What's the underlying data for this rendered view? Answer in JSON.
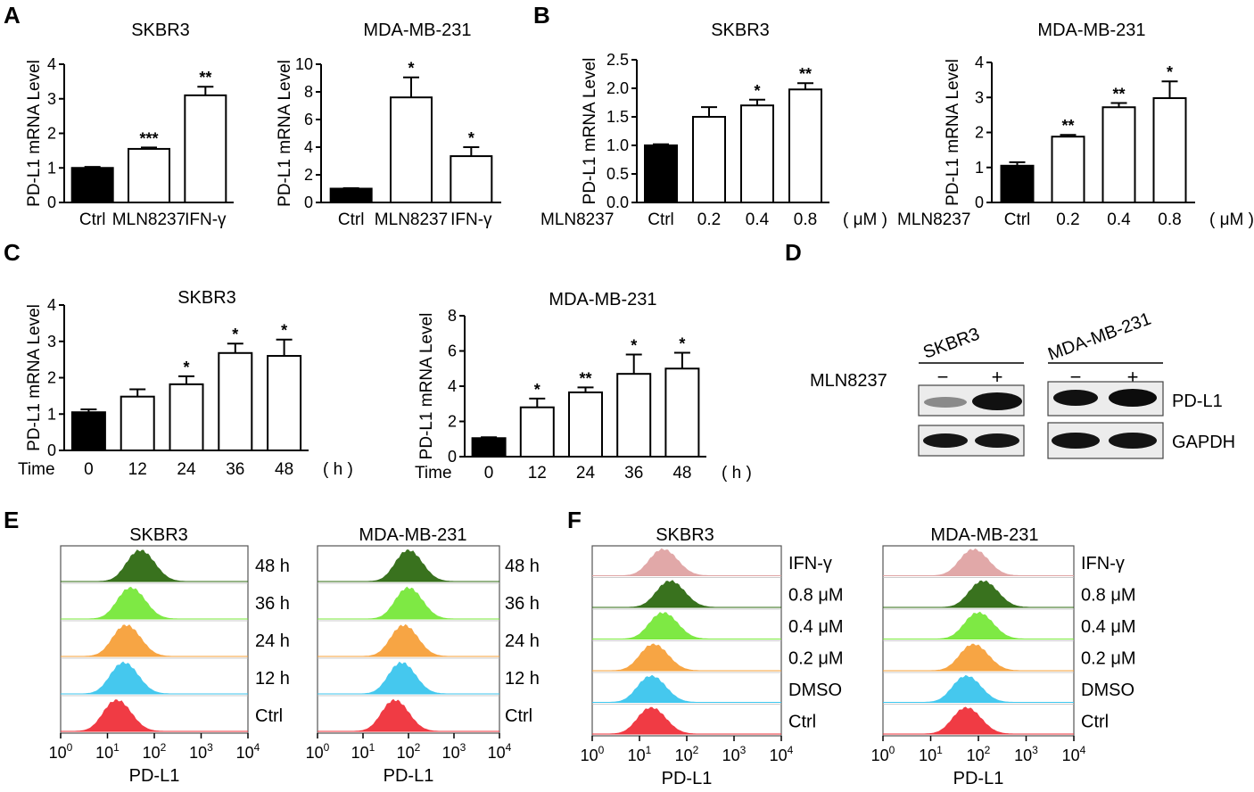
{
  "panel_letters": [
    "A",
    "B",
    "C",
    "D",
    "E",
    "F"
  ],
  "chart_data": [
    {
      "panel": "A",
      "type": "bar",
      "title": "SKBR3",
      "ylabel": "PD-L1 mRNA Level",
      "xlabel": "",
      "categories": [
        "Ctrl",
        "MLN8237",
        "IFN-γ"
      ],
      "values": [
        1.0,
        1.55,
        3.1
      ],
      "errors": [
        0.03,
        0.04,
        0.25
      ],
      "sig": [
        "",
        "***",
        "**"
      ],
      "ylim": [
        0,
        4
      ],
      "yticks": [
        "0",
        "1",
        "2",
        "3",
        "4"
      ]
    },
    {
      "panel": "A",
      "type": "bar",
      "title": "MDA-MB-231",
      "ylabel": "PD-L1 mRNA Level",
      "xlabel": "",
      "categories": [
        "Ctrl",
        "MLN8237",
        "IFN-γ"
      ],
      "values": [
        1.0,
        7.6,
        3.35
      ],
      "errors": [
        0.03,
        1.45,
        0.65
      ],
      "sig": [
        "",
        "*",
        "*"
      ],
      "ylim": [
        0,
        10
      ],
      "yticks": [
        "0",
        "2",
        "4",
        "6",
        "8",
        "10"
      ]
    },
    {
      "panel": "B",
      "type": "bar",
      "title": "SKBR3",
      "ylabel": "PD-L1 mRNA Level",
      "xlabel": "MLN8237",
      "categories": [
        "Ctrl",
        "0.2",
        "0.4",
        "0.8"
      ],
      "unit": "( μM )",
      "values": [
        1.0,
        1.5,
        1.7,
        1.98
      ],
      "errors": [
        0.02,
        0.17,
        0.1,
        0.11
      ],
      "sig": [
        "",
        "",
        "*",
        "**"
      ],
      "ylim": [
        0,
        2.5
      ],
      "yticks": [
        "0.0",
        "0.5",
        "1.0",
        "1.5",
        "2.0",
        "2.5"
      ]
    },
    {
      "panel": "B",
      "type": "bar",
      "title": "MDA-MB-231",
      "ylabel": "PD-L1 mRNA Level",
      "xlabel": "MLN8237",
      "categories": [
        "Ctrl",
        "0.2",
        "0.4",
        "0.8"
      ],
      "unit": "( μM )",
      "values": [
        1.05,
        1.88,
        2.72,
        2.98
      ],
      "errors": [
        0.1,
        0.05,
        0.12,
        0.48
      ],
      "sig": [
        "",
        "**",
        "**",
        "*"
      ],
      "ylim": [
        0,
        4
      ],
      "yticks": [
        "0",
        "1",
        "2",
        "3",
        "4"
      ]
    },
    {
      "panel": "C",
      "type": "bar",
      "title": "SKBR3",
      "ylabel": "PD-L1 mRNA Level",
      "xlabel": "Time",
      "categories": [
        "0",
        "12",
        "24",
        "36",
        "48"
      ],
      "unit": "( h )",
      "values": [
        1.05,
        1.48,
        1.82,
        2.68,
        2.6
      ],
      "errors": [
        0.08,
        0.2,
        0.22,
        0.26,
        0.45
      ],
      "sig": [
        "",
        "",
        "*",
        "*",
        "*"
      ],
      "ylim": [
        0,
        4
      ],
      "yticks": [
        "0",
        "1",
        "2",
        "3",
        "4"
      ]
    },
    {
      "panel": "C",
      "type": "bar",
      "title": "MDA-MB-231",
      "ylabel": "PD-L1 mRNA Level",
      "xlabel": "Time",
      "categories": [
        "0",
        "12",
        "24",
        "36",
        "48"
      ],
      "unit": "( h )",
      "values": [
        1.05,
        2.8,
        3.65,
        4.7,
        5.0
      ],
      "errors": [
        0.05,
        0.5,
        0.28,
        1.1,
        0.9
      ],
      "sig": [
        "",
        "*",
        "**",
        "*",
        "*"
      ],
      "ylim": [
        0,
        8
      ],
      "yticks": [
        "0",
        "2",
        "4",
        "6",
        "8"
      ]
    }
  ],
  "western_blot": {
    "treatment_label": "MLN8237",
    "cell_lines": [
      "SKBR3",
      "MDA-MB-231"
    ],
    "lane_signs": [
      "−",
      "+"
    ],
    "proteins": [
      "PD-L1",
      "GAPDH"
    ]
  },
  "flow_cytometry": {
    "xlabel": "PD-L1",
    "x_tick_bases": [
      "10",
      "10",
      "10",
      "10",
      "10"
    ],
    "x_tick_exps": [
      "0",
      "1",
      "2",
      "3",
      "4"
    ],
    "panel_E": {
      "titles": [
        "SKBR3",
        "MDA-MB-231"
      ],
      "conditions": [
        "48 h",
        "36 h",
        "24 h",
        "12 h",
        "Ctrl"
      ],
      "colors": [
        "#2f6b12",
        "#78e83a",
        "#f7a13a",
        "#3cc6ee",
        "#f0313a"
      ],
      "peak_log10": [
        [
          1.75,
          1.55,
          1.45,
          1.4,
          1.25
        ],
        [
          2.05,
          2.05,
          1.95,
          1.9,
          1.75
        ]
      ]
    },
    "panel_F": {
      "titles": [
        "SKBR3",
        "MDA-MB-231"
      ],
      "conditions": [
        "IFN-γ",
        "0.8 μM",
        "0.4 μM",
        "0.2 μM",
        "DMSO",
        "Ctrl"
      ],
      "colors": [
        "#e0a4a4",
        "#2f6b12",
        "#78e83a",
        "#f7a13a",
        "#3cc6ee",
        "#f0313a"
      ],
      "peak_log10": [
        [
          1.55,
          1.7,
          1.55,
          1.35,
          1.3,
          1.3
        ],
        [
          1.95,
          2.15,
          2.05,
          1.95,
          1.8,
          1.8
        ]
      ]
    }
  }
}
